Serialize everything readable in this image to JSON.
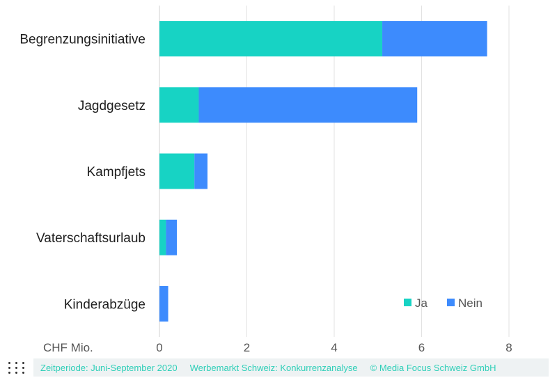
{
  "chart_data": {
    "type": "bar",
    "orientation": "horizontal",
    "stacked": true,
    "categories": [
      "Begrenzungsinitiative",
      "Jagdgesetz",
      "Kampfjets",
      "Vaterschaftsurlaub",
      "Kinderabzüge"
    ],
    "series": [
      {
        "name": "Ja",
        "color": "#17d3c4",
        "values": [
          5.1,
          0.9,
          0.8,
          0.15,
          0.0
        ]
      },
      {
        "name": "Nein",
        "color": "#3d8bfd",
        "values": [
          2.4,
          5.0,
          0.3,
          0.25,
          0.2
        ]
      }
    ],
    "xlim": [
      0,
      8
    ],
    "xticks": [
      0,
      2,
      4,
      6,
      8
    ],
    "xlabel": "CHF Mio.",
    "grid": true,
    "legend": "bottom-right"
  },
  "footer": {
    "period": "Zeitperiode: Juni-September 2020",
    "source": "Werbemarkt Schweiz: Konkurrenzanalyse",
    "copyright": "© Media Focus Schweiz GmbH"
  },
  "icons": {
    "logo": "media-focus-dots-logo-icon"
  }
}
